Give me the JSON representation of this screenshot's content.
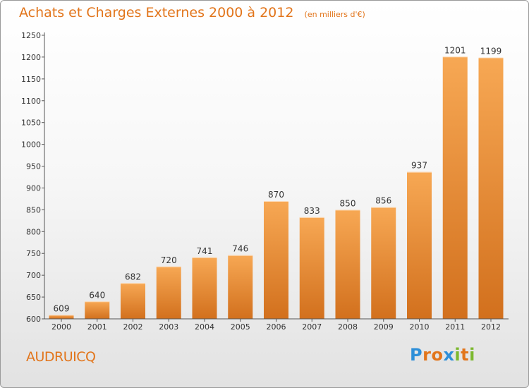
{
  "header": {
    "title": "Achats et Charges Externes 2000 à 2012",
    "subtitle": "(en milliers d'€)"
  },
  "footer": {
    "city": "AUDRUICQ",
    "logo_letters": [
      "P",
      "r",
      "o",
      "x",
      "i",
      "t",
      "i"
    ],
    "logo_colors": [
      "#2e8fd8",
      "#e2751b",
      "#e2751b",
      "#2e8fd8",
      "#7cb82f",
      "#e2751b",
      "#7cb82f"
    ]
  },
  "colors": {
    "accent": "#e2751b",
    "bar_top": "#f7a854",
    "bar_bottom": "#d2701d",
    "axis": "#555555"
  },
  "chart_data": {
    "type": "bar",
    "title": "Achats et Charges Externes 2000 à 2012",
    "subtitle": "(en milliers d'€)",
    "xlabel": "",
    "ylabel": "",
    "categories": [
      "2000",
      "2001",
      "2002",
      "2003",
      "2004",
      "2005",
      "2006",
      "2007",
      "2008",
      "2009",
      "2010",
      "2011",
      "2012"
    ],
    "values": [
      609,
      640,
      682,
      720,
      741,
      746,
      870,
      833,
      850,
      856,
      937,
      1201,
      1199
    ],
    "ylim": [
      600,
      1250
    ],
    "yticks": [
      600,
      650,
      700,
      750,
      800,
      850,
      900,
      950,
      1000,
      1050,
      1100,
      1150,
      1200,
      1250
    ],
    "grid": false,
    "legend": "none"
  }
}
